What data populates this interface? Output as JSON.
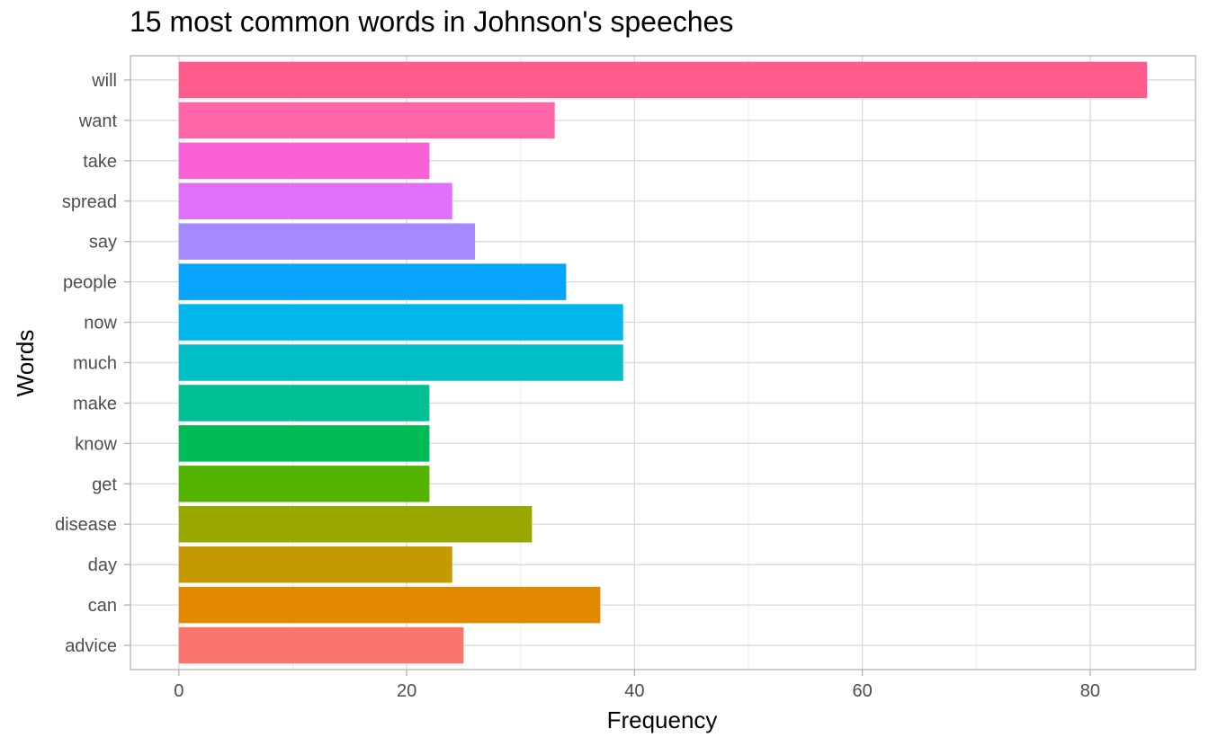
{
  "chart_data": {
    "type": "bar",
    "orientation": "horizontal",
    "title": "15 most common words in Johnson's speeches",
    "xlabel": "Frequency",
    "ylabel": "Words",
    "categories": [
      "advice",
      "can",
      "day",
      "disease",
      "get",
      "know",
      "make",
      "much",
      "now",
      "people",
      "say",
      "spread",
      "take",
      "want",
      "will"
    ],
    "values": [
      25,
      37,
      24,
      31,
      22,
      22,
      22,
      39,
      39,
      34,
      26,
      24,
      22,
      33,
      85
    ],
    "colors": [
      "#F8766D",
      "#E38900",
      "#C49A00",
      "#99A800",
      "#53B400",
      "#00BC56",
      "#00C094",
      "#00BFC4",
      "#00B6EB",
      "#06A4FF",
      "#A58AFF",
      "#DF70F8",
      "#FB61D7",
      "#FF66A8",
      "#FF5C8D"
    ],
    "xlim": [
      -4.25,
      89.25
    ],
    "xticks": [
      0,
      20,
      40,
      60,
      80
    ],
    "x_tick_labels": [
      "0",
      "20",
      "40",
      "60",
      "80"
    ],
    "grid": true,
    "legend": "none"
  }
}
